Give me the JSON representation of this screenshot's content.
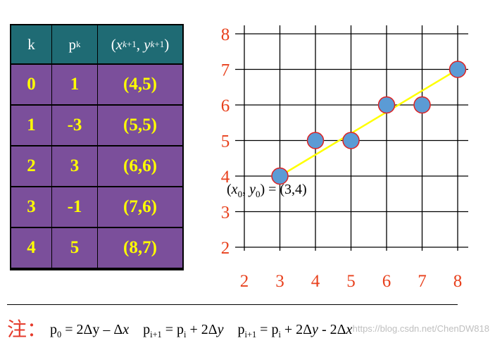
{
  "table": {
    "headers": {
      "k": "k",
      "p": "p",
      "p_sub": "k",
      "point": "(x_{k+1}, y_{k+1})"
    },
    "rows": [
      {
        "k": "0",
        "p": "1",
        "point": "(4,5)"
      },
      {
        "k": "1",
        "p": "-3",
        "point": "(5,5)"
      },
      {
        "k": "2",
        "p": "3",
        "point": "(6,6)"
      },
      {
        "k": "3",
        "p": "-1",
        "point": "(7,6)"
      },
      {
        "k": "4",
        "p": "5",
        "point": "(8,7)"
      }
    ]
  },
  "grid": {
    "x_ticks": [
      "2",
      "3",
      "4",
      "5",
      "6",
      "7",
      "8"
    ],
    "y_ticks": [
      "2",
      "3",
      "4",
      "5",
      "6",
      "7",
      "8"
    ],
    "tick_color": "#e8401c",
    "line_color": "#ffff00",
    "point_color": "#5b9bd5",
    "point_edge": "#e02020",
    "line": {
      "from": [
        3,
        4
      ],
      "to": [
        8,
        7
      ]
    },
    "points": [
      [
        3,
        4
      ],
      [
        4,
        5
      ],
      [
        5,
        5
      ],
      [
        6,
        6
      ],
      [
        7,
        6
      ],
      [
        8,
        7
      ]
    ],
    "start_label": "(x0, y0) = (3,4)"
  },
  "note": {
    "prefix": "注：",
    "formula1": "p0 = 2Δy − Δx",
    "formula2": "pi+1 = pi + 2Δy",
    "formula3": "pi+1 = pi + 2Δy - 2Δx"
  },
  "watermark": "https://blog.csdn.net/ChenDW818"
}
